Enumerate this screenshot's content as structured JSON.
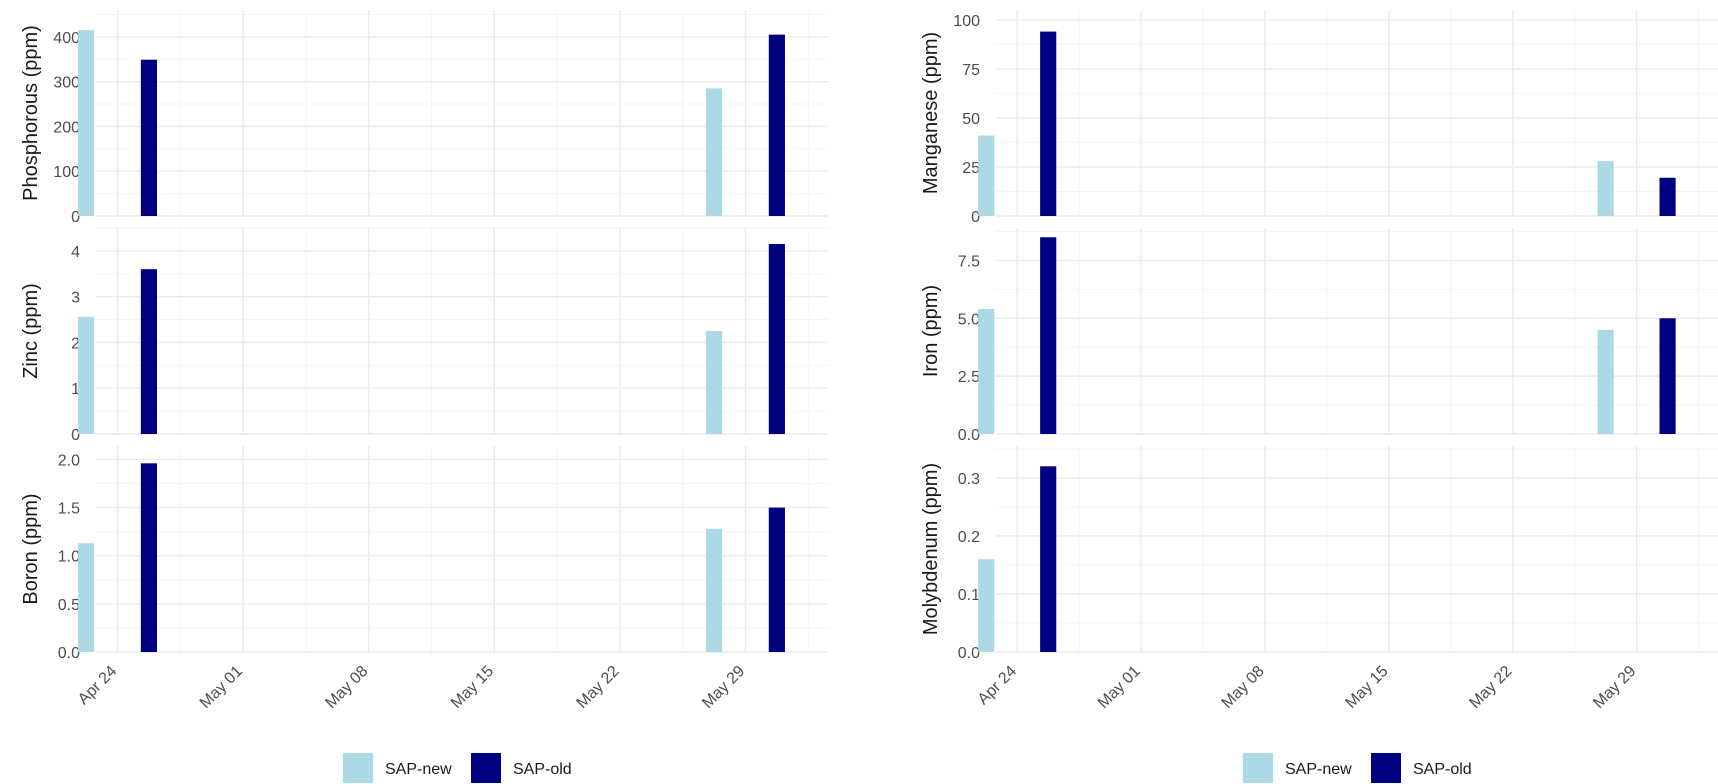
{
  "colors": {
    "SAP-new": "#add8e6",
    "SAP-old": "#000080",
    "grid_major": "#ebebeb",
    "grid_minor": "#f5f5f5"
  },
  "chart_data": [
    {
      "type": "bar",
      "panel": "left-top",
      "ylabel": "Phosphorous (ppm)",
      "ylim": [
        0,
        460
      ],
      "yticks": [
        0,
        100,
        200,
        300,
        400
      ],
      "ytick_labels": [
        "0",
        "100",
        "200",
        "300",
        "400"
      ],
      "series": [
        {
          "name": "SAP-new",
          "points": [
            {
              "x": "Apr 24",
              "y": 415
            },
            {
              "x": "May 29",
              "y": 285
            }
          ]
        },
        {
          "name": "SAP-old",
          "points": [
            {
              "x": "Apr 24",
              "y": 349
            },
            {
              "x": "May 29",
              "y": 405
            }
          ]
        }
      ]
    },
    {
      "type": "bar",
      "panel": "left-middle",
      "ylabel": "Zinc (ppm)",
      "ylim": [
        0,
        4.5
      ],
      "yticks": [
        0,
        1,
        2,
        3,
        4
      ],
      "ytick_labels": [
        "0",
        "1",
        "2",
        "3",
        "4"
      ],
      "series": [
        {
          "name": "SAP-new",
          "points": [
            {
              "x": "Apr 24",
              "y": 2.56
            },
            {
              "x": "May 29",
              "y": 2.25
            }
          ]
        },
        {
          "name": "SAP-old",
          "points": [
            {
              "x": "Apr 24",
              "y": 3.6
            },
            {
              "x": "May 29",
              "y": 4.15
            }
          ]
        }
      ]
    },
    {
      "type": "bar",
      "panel": "left-bottom",
      "ylabel": "Boron (ppm)",
      "ylim": [
        0,
        2.14
      ],
      "yticks": [
        0,
        0.5,
        1.0,
        1.5,
        2.0
      ],
      "ytick_labels": [
        "0.0",
        "0.5",
        "1.0",
        "1.5",
        "2.0"
      ],
      "series": [
        {
          "name": "SAP-new",
          "points": [
            {
              "x": "Apr 24",
              "y": 1.13
            },
            {
              "x": "May 29",
              "y": 1.28
            }
          ]
        },
        {
          "name": "SAP-old",
          "points": [
            {
              "x": "Apr 24",
              "y": 1.96
            },
            {
              "x": "May 29",
              "y": 1.5
            }
          ]
        }
      ]
    },
    {
      "type": "bar",
      "panel": "right-top",
      "ylabel": "Manganese (ppm)",
      "ylim": [
        0,
        105
      ],
      "yticks": [
        0,
        25,
        50,
        75,
        100
      ],
      "ytick_labels": [
        "0",
        "25",
        "50",
        "75",
        "100"
      ],
      "series": [
        {
          "name": "SAP-new",
          "points": [
            {
              "x": "Apr 24",
              "y": 41
            },
            {
              "x": "May 29",
              "y": 28
            }
          ]
        },
        {
          "name": "SAP-old",
          "points": [
            {
              "x": "Apr 24",
              "y": 94
            },
            {
              "x": "May 29",
              "y": 19.5
            }
          ]
        }
      ]
    },
    {
      "type": "bar",
      "panel": "right-middle",
      "ylabel": "Iron (ppm)",
      "ylim": [
        0,
        8.9
      ],
      "yticks": [
        0,
        2.5,
        5.0,
        7.5
      ],
      "ytick_labels": [
        "0.0",
        "2.5",
        "5.0",
        "7.5"
      ],
      "series": [
        {
          "name": "SAP-new",
          "points": [
            {
              "x": "Apr 24",
              "y": 5.4
            },
            {
              "x": "May 29",
              "y": 4.5
            }
          ]
        },
        {
          "name": "SAP-old",
          "points": [
            {
              "x": "Apr 24",
              "y": 8.5
            },
            {
              "x": "May 29",
              "y": 5.0
            }
          ]
        }
      ]
    },
    {
      "type": "bar",
      "panel": "right-bottom",
      "ylabel": "Molybdenum (ppm)",
      "ylim": [
        0,
        0.355
      ],
      "yticks": [
        0,
        0.1,
        0.2,
        0.3
      ],
      "ytick_labels": [
        "0.0",
        "0.1",
        "0.2",
        "0.3"
      ],
      "series": [
        {
          "name": "SAP-new",
          "points": [
            {
              "x": "Apr 24",
              "y": 0.16
            }
          ]
        },
        {
          "name": "SAP-old",
          "points": [
            {
              "x": "Apr 24",
              "y": 0.32
            }
          ]
        }
      ]
    }
  ],
  "x_axis": {
    "tick_labels": [
      "Apr 24",
      "May 01",
      "May 08",
      "May 15",
      "May 22",
      "May 29"
    ],
    "date_range": [
      "Apr 24",
      "Jun 02"
    ]
  },
  "legend": {
    "placement": "bottom",
    "items": [
      {
        "label": "SAP-new",
        "color": "#add8e6"
      },
      {
        "label": "SAP-old",
        "color": "#000080"
      }
    ]
  }
}
